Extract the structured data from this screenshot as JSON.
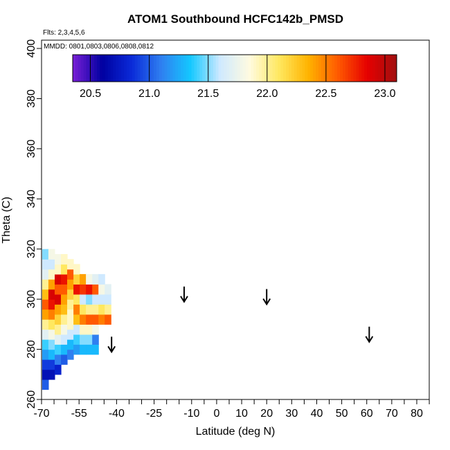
{
  "chart_data": {
    "type": "heatmap",
    "title": "ATOM1 Southbound HCFC142b_PMSD",
    "flights": "Flts: 2,3,4,5,6",
    "mmdd": "MMDD: 0801,0803,0806,0808,0812",
    "xlabel": "Latitude (deg N)",
    "ylabel": "Theta (C)",
    "xlim": [
      -70,
      85
    ],
    "ylim": [
      260,
      405
    ],
    "x_ticks": [
      -70,
      -55,
      -40,
      -25,
      -10,
      0,
      10,
      20,
      30,
      40,
      50,
      60,
      70,
      80
    ],
    "x_tick_labels": [
      "-70",
      "-55",
      "-40",
      "-25",
      "-10",
      "0",
      "10",
      "20",
      "30",
      "40",
      "50",
      "60",
      "70",
      "80"
    ],
    "x_minor_ticks": [
      -65,
      -60,
      -50,
      -45,
      -35,
      -30,
      -20,
      -15,
      -5,
      5,
      15,
      25,
      35,
      45,
      55,
      65,
      75,
      85
    ],
    "y_ticks": [
      260,
      280,
      300,
      320,
      340,
      360,
      380,
      400
    ],
    "y_tick_labels": [
      "260",
      "280",
      "300",
      "320",
      "340",
      "360",
      "380",
      "400"
    ],
    "colorbar": {
      "range": [
        20.35,
        23.1
      ],
      "ticks": [
        20.5,
        21.0,
        21.5,
        22.0,
        22.5,
        23.0
      ],
      "tick_labels": [
        "20.5",
        "21.0",
        "21.5",
        "22.0",
        "22.5",
        "23.0"
      ],
      "colors": [
        "#7a1fd6",
        "#0000a0",
        "#0a2ad8",
        "#2f7ff0",
        "#14c8ff",
        "#cfe9ff",
        "#fffbe0",
        "#ffe860",
        "#ffb300",
        "#ff5a00",
        "#e60000",
        "#a01010"
      ]
    },
    "arrows": [
      {
        "lat": -42,
        "theta": 282
      },
      {
        "lat": -13,
        "theta": 302
      },
      {
        "lat": 20,
        "theta": 301
      },
      {
        "lat": 61,
        "theta": 286
      }
    ],
    "columns": [
      {
        "lat": -68.5,
        "cells": [
          [
            266,
            21.0
          ],
          [
            270,
            20.7
          ],
          [
            274,
            20.9
          ],
          [
            278,
            21.2
          ],
          [
            282,
            21.4
          ],
          [
            286,
            21.7
          ],
          [
            290,
            22.0
          ],
          [
            294,
            22.4
          ],
          [
            298,
            22.6
          ],
          [
            302,
            22.3
          ],
          [
            306,
            22.0
          ],
          [
            310,
            21.7
          ],
          [
            314,
            21.6
          ],
          [
            318,
            21.5
          ]
        ]
      },
      {
        "lat": -66.0,
        "cells": [
          [
            270,
            20.7
          ],
          [
            274,
            20.9
          ],
          [
            278,
            21.3
          ],
          [
            282,
            21.5
          ],
          [
            286,
            21.8
          ],
          [
            290,
            22.1
          ],
          [
            294,
            22.5
          ],
          [
            298,
            22.8
          ],
          [
            302,
            22.9
          ],
          [
            306,
            22.4
          ],
          [
            310,
            21.9
          ],
          [
            314,
            21.6
          ],
          [
            318,
            21.8
          ]
        ]
      },
      {
        "lat": -63.5,
        "cells": [
          [
            272,
            20.8
          ],
          [
            276,
            21.1
          ],
          [
            280,
            21.4
          ],
          [
            284,
            21.7
          ],
          [
            288,
            22.0
          ],
          [
            292,
            22.2
          ],
          [
            296,
            22.4
          ],
          [
            300,
            22.9
          ],
          [
            304,
            22.6
          ],
          [
            308,
            22.9
          ],
          [
            312,
            21.9
          ],
          [
            316,
            21.8
          ]
        ]
      },
      {
        "lat": -61.0,
        "cells": [
          [
            276,
            21.0
          ],
          [
            280,
            21.3
          ],
          [
            284,
            21.6
          ],
          [
            288,
            21.8
          ],
          [
            292,
            22.0
          ],
          [
            296,
            22.3
          ],
          [
            300,
            22.4
          ],
          [
            304,
            22.6
          ],
          [
            308,
            22.8
          ],
          [
            312,
            22.1
          ],
          [
            316,
            21.9
          ]
        ]
      },
      {
        "lat": -58.5,
        "cells": [
          [
            278,
            21.1
          ],
          [
            282,
            21.3
          ],
          [
            286,
            21.6
          ],
          [
            290,
            21.9
          ],
          [
            294,
            21.9
          ],
          [
            298,
            22.0
          ],
          [
            302,
            22.2
          ],
          [
            306,
            22.4
          ],
          [
            310,
            22.6
          ],
          [
            314,
            21.9
          ]
        ]
      },
      {
        "lat": -56.0,
        "cells": [
          [
            280,
            21.2
          ],
          [
            284,
            21.4
          ],
          [
            288,
            21.6
          ],
          [
            292,
            22.3
          ],
          [
            296,
            22.5
          ],
          [
            300,
            22.1
          ],
          [
            304,
            22.8
          ],
          [
            308,
            22.2
          ],
          [
            312,
            21.9
          ]
        ]
      },
      {
        "lat": -53.5,
        "cells": [
          [
            280,
            21.3
          ],
          [
            284,
            21.5
          ],
          [
            288,
            21.9
          ],
          [
            292,
            22.5
          ],
          [
            296,
            22.1
          ],
          [
            300,
            21.6
          ],
          [
            304,
            22.7
          ],
          [
            308,
            22.4
          ]
        ]
      },
      {
        "lat": -51.0,
        "cells": [
          [
            280,
            21.3
          ],
          [
            284,
            21.5
          ],
          [
            288,
            21.9
          ],
          [
            292,
            22.6
          ],
          [
            296,
            22.0
          ],
          [
            300,
            21.5
          ],
          [
            304,
            22.8
          ],
          [
            308,
            21.8
          ]
        ]
      },
      {
        "lat": -48.5,
        "cells": [
          [
            280,
            21.3
          ],
          [
            284,
            21.1
          ],
          [
            288,
            21.8
          ],
          [
            292,
            22.6
          ],
          [
            296,
            22.0
          ],
          [
            300,
            21.6
          ],
          [
            304,
            22.6
          ],
          [
            308,
            21.7
          ]
        ]
      },
      {
        "lat": -46.0,
        "cells": [
          [
            292,
            22.5
          ],
          [
            296,
            22.1
          ],
          [
            300,
            21.6
          ],
          [
            304,
            21.8
          ],
          [
            308,
            21.6
          ]
        ]
      },
      {
        "lat": -43.5,
        "cells": [
          [
            292,
            22.6
          ],
          [
            296,
            22.0
          ],
          [
            300,
            21.6
          ],
          [
            304,
            21.7
          ]
        ]
      }
    ]
  }
}
